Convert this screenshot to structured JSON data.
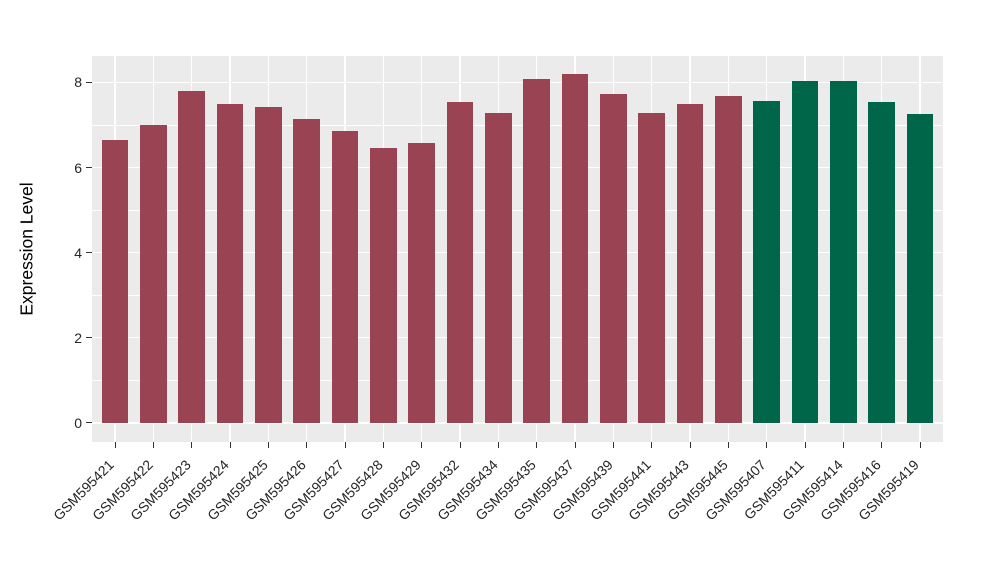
{
  "chart_data": {
    "type": "bar",
    "title": "",
    "xlabel": "",
    "ylabel": "Expression Level",
    "categories": [
      "GSM595421",
      "GSM595422",
      "GSM595423",
      "GSM595424",
      "GSM595425",
      "GSM595426",
      "GSM595427",
      "GSM595428",
      "GSM595429",
      "GSM595432",
      "GSM595434",
      "GSM595435",
      "GSM595437",
      "GSM595439",
      "GSM595441",
      "GSM595443",
      "GSM595445",
      "GSM595407",
      "GSM595411",
      "GSM595414",
      "GSM595416",
      "GSM595419"
    ],
    "values": [
      6.65,
      7.0,
      7.79,
      7.5,
      7.43,
      7.15,
      6.85,
      6.46,
      6.58,
      7.53,
      7.27,
      8.07,
      8.2,
      7.73,
      7.28,
      7.49,
      7.69,
      7.57,
      8.04,
      8.04,
      7.54,
      7.26
    ],
    "groups": [
      "a",
      "a",
      "a",
      "a",
      "a",
      "a",
      "a",
      "a",
      "a",
      "a",
      "a",
      "a",
      "a",
      "a",
      "a",
      "a",
      "a",
      "b",
      "b",
      "b",
      "b",
      "b"
    ],
    "group_colors": {
      "a": "#9A4453",
      "b": "#006649"
    },
    "ylim": [
      -0.45,
      8.62
    ],
    "yticks": [
      0,
      2,
      4,
      6,
      8
    ],
    "ytick_labels": [
      "0",
      "2",
      "4",
      "6",
      "8"
    ],
    "yminor": [
      1,
      3,
      5,
      7
    ],
    "x_expand": 0.6,
    "bar_width_frac": 0.7,
    "grid": true,
    "legend_position": "none",
    "panel_bg": "#EBEBEB",
    "grid_color": "#FFFFFF",
    "tick_color": "#333333",
    "axis_text_color": "#262626"
  }
}
